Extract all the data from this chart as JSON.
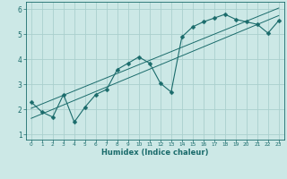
{
  "xlabel": "Humidex (Indice chaleur)",
  "ylabel": "",
  "bg_color": "#cce8e6",
  "line_color": "#1a6b6b",
  "grid_color": "#aacfcd",
  "xlim": [
    -0.5,
    23.5
  ],
  "ylim": [
    0.8,
    6.3
  ],
  "xticks": [
    0,
    1,
    2,
    3,
    4,
    5,
    6,
    7,
    8,
    9,
    10,
    11,
    12,
    13,
    14,
    15,
    16,
    17,
    18,
    19,
    20,
    21,
    22,
    23
  ],
  "yticks": [
    1,
    2,
    3,
    4,
    5,
    6
  ],
  "data_x": [
    0,
    1,
    2,
    3,
    4,
    5,
    6,
    7,
    8,
    9,
    10,
    11,
    12,
    13,
    14,
    15,
    16,
    17,
    18,
    19,
    20,
    21,
    22,
    23
  ],
  "data_y": [
    2.3,
    1.9,
    1.7,
    2.6,
    1.5,
    2.1,
    2.6,
    2.8,
    3.6,
    3.85,
    4.1,
    3.85,
    3.05,
    2.7,
    4.9,
    5.3,
    5.5,
    5.65,
    5.8,
    5.6,
    5.5,
    5.4,
    5.05,
    5.55
  ],
  "trend1_x": [
    0,
    23
  ],
  "trend1_y": [
    1.65,
    5.75
  ],
  "trend2_x": [
    0,
    23
  ],
  "trend2_y": [
    2.05,
    6.05
  ],
  "marker": "D",
  "markersize": 2.5,
  "linewidth": 0.8,
  "trend_linewidth": 0.7
}
